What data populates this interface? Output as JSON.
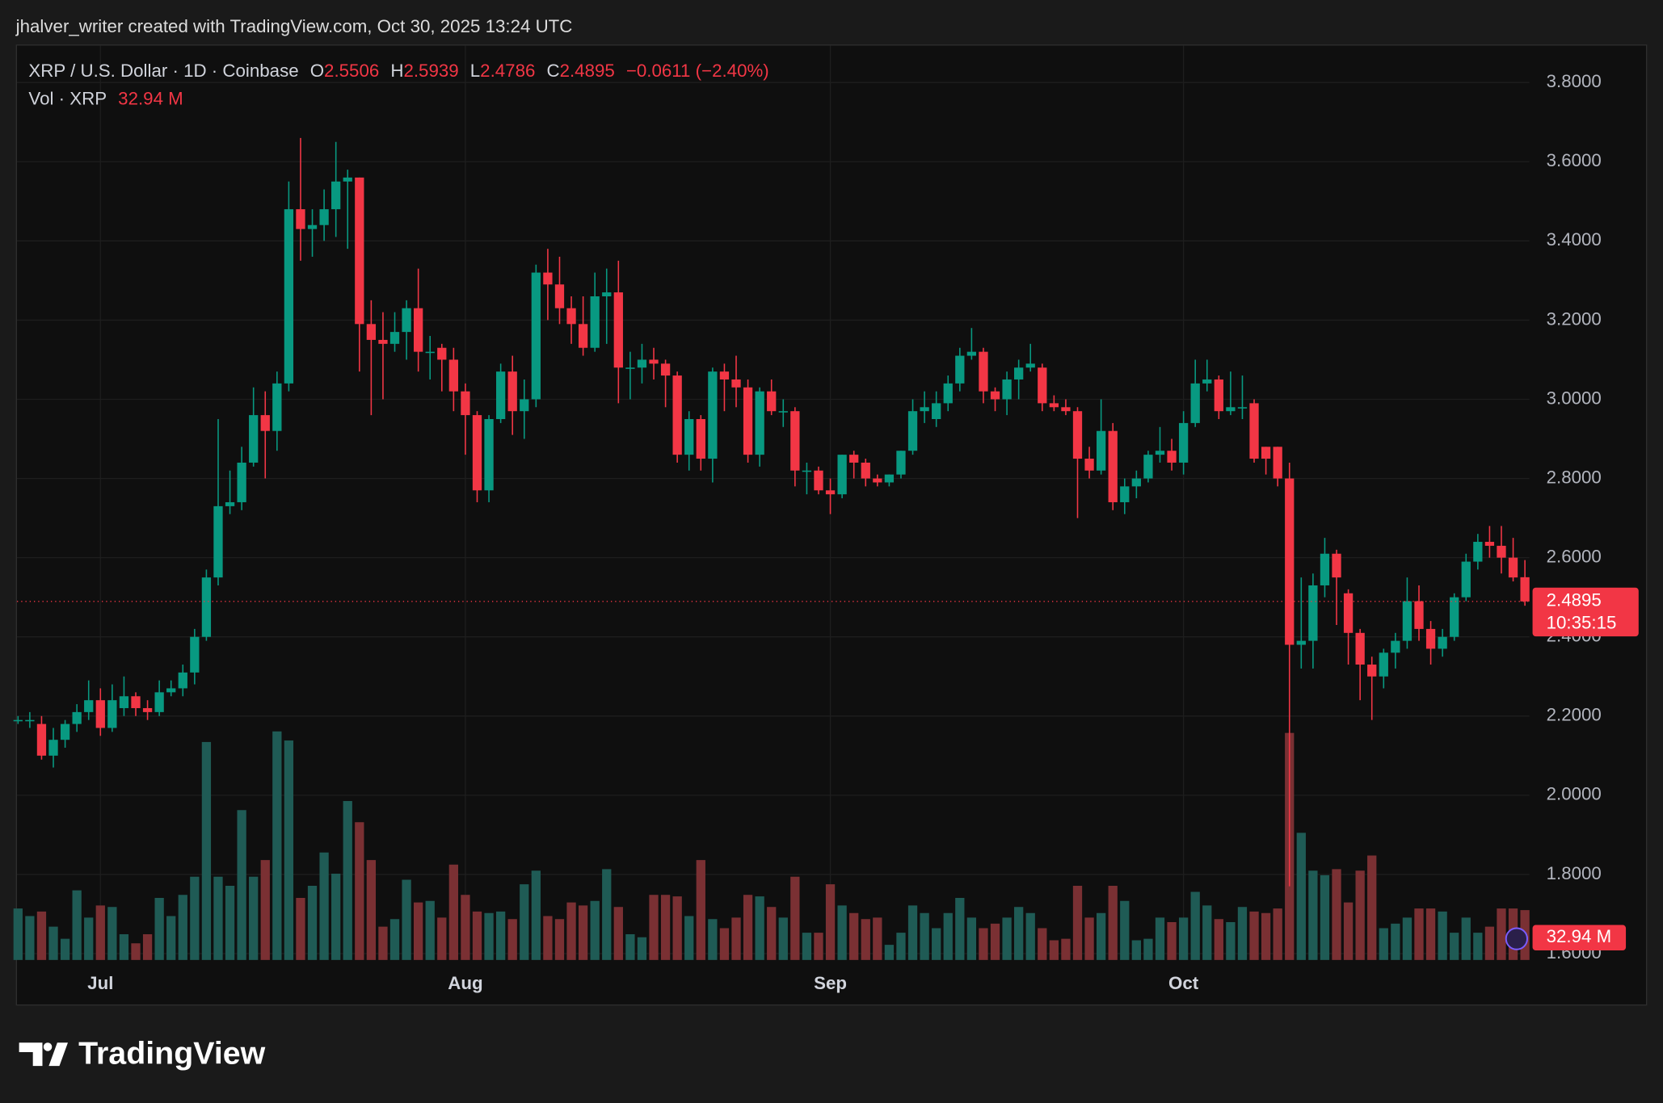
{
  "header": {
    "credit": "jhalver_writer created with TradingView.com, Oct 30, 2025 13:24 UTC",
    "ohlc_letters": [
      "O",
      "H",
      "L",
      "C"
    ],
    "change_label": "−0.0611 (−2.40%)",
    "volume_title": "Vol · XRP",
    "volume_label": "32.94 M",
    "countdown": "10:35:15",
    "logo": "TradingView"
  },
  "chart_data": {
    "type": "candlestick",
    "title": "XRP / U.S. Dollar · 1D · Coinbase",
    "categories": [
      null,
      null,
      null,
      null,
      null,
      null,
      null,
      "Jul",
      null,
      null,
      null,
      null,
      null,
      null,
      null,
      null,
      null,
      null,
      null,
      null,
      null,
      null,
      null,
      null,
      null,
      null,
      null,
      null,
      null,
      null,
      null,
      null,
      null,
      null,
      null,
      null,
      null,
      null,
      "Aug",
      null,
      null,
      null,
      null,
      null,
      null,
      null,
      null,
      null,
      null,
      null,
      null,
      null,
      null,
      null,
      null,
      null,
      null,
      null,
      null,
      null,
      null,
      null,
      null,
      null,
      null,
      null,
      null,
      null,
      null,
      "Sep",
      null,
      null,
      null,
      null,
      null,
      null,
      null,
      null,
      null,
      null,
      null,
      null,
      null,
      null,
      null,
      null,
      null,
      null,
      null,
      null,
      null,
      null,
      null,
      null,
      null,
      null,
      null,
      null,
      null,
      "Oct",
      null,
      null,
      null,
      null,
      null,
      null,
      null,
      null,
      null,
      null,
      null,
      null,
      null,
      null,
      null,
      null,
      null,
      null,
      null,
      null,
      null,
      null,
      null,
      null,
      null,
      null,
      null,
      null,
      null
    ],
    "open": [
      2.19,
      2.19,
      2.18,
      2.1,
      2.14,
      2.18,
      2.21,
      2.24,
      2.17,
      2.22,
      2.25,
      2.22,
      2.21,
      2.26,
      2.27,
      2.31,
      2.4,
      2.55,
      2.73,
      2.74,
      2.84,
      2.96,
      2.92,
      3.04,
      3.48,
      3.43,
      3.44,
      3.48,
      3.55,
      3.56,
      3.19,
      3.15,
      3.14,
      3.17,
      3.23,
      3.12,
      3.13,
      3.1,
      3.02,
      2.96,
      2.77,
      2.95,
      3.07,
      2.97,
      3.0,
      3.32,
      3.29,
      3.23,
      3.19,
      3.13,
      3.26,
      3.27,
      3.08,
      3.08,
      3.1,
      3.09,
      3.06,
      2.86,
      2.95,
      2.85,
      3.07,
      3.05,
      3.03,
      2.86,
      3.02,
      2.97,
      2.97,
      2.82,
      2.82,
      2.77,
      2.76,
      2.86,
      2.84,
      2.8,
      2.79,
      2.81,
      2.87,
      2.97,
      2.95,
      2.99,
      3.04,
      3.11,
      3.12,
      3.02,
      3.0,
      3.05,
      3.08,
      3.08,
      2.99,
      2.98,
      2.97,
      2.85,
      2.82,
      2.92,
      2.74,
      2.78,
      2.8,
      2.86,
      2.87,
      2.84,
      2.94,
      3.04,
      3.05,
      2.97,
      2.98,
      2.99,
      2.88,
      2.88,
      2.8,
      2.38,
      2.39,
      2.53,
      2.61,
      2.51,
      2.41,
      2.33,
      2.3,
      2.36,
      2.39,
      2.49,
      2.42,
      2.37,
      2.4,
      2.5,
      2.59,
      2.64,
      2.63,
      2.6,
      2.5506
    ],
    "high": [
      2.2,
      2.21,
      2.2,
      2.17,
      2.19,
      2.23,
      2.29,
      2.27,
      2.28,
      2.3,
      2.26,
      2.24,
      2.29,
      2.29,
      2.33,
      2.42,
      2.57,
      2.95,
      2.82,
      2.88,
      3.03,
      3.02,
      3.07,
      3.55,
      3.66,
      3.48,
      3.53,
      3.65,
      3.58,
      3.56,
      3.25,
      3.22,
      3.22,
      3.25,
      3.33,
      3.16,
      3.14,
      3.13,
      3.04,
      2.97,
      2.96,
      3.09,
      3.11,
      3.05,
      3.34,
      3.38,
      3.36,
      3.26,
      3.26,
      3.32,
      3.33,
      3.35,
      3.12,
      3.14,
      3.13,
      3.1,
      3.07,
      2.97,
      2.96,
      3.08,
      3.09,
      3.11,
      3.05,
      3.03,
      3.05,
      3.0,
      2.98,
      2.84,
      2.83,
      2.8,
      2.86,
      2.87,
      2.85,
      2.81,
      2.81,
      2.87,
      3.0,
      3.02,
      3.02,
      3.06,
      3.13,
      3.18,
      3.13,
      3.03,
      3.07,
      3.1,
      3.14,
      3.09,
      3.01,
      3.0,
      2.98,
      2.88,
      3.0,
      2.94,
      2.8,
      2.82,
      2.87,
      2.93,
      2.9,
      2.97,
      3.1,
      3.1,
      3.06,
      3.07,
      3.06,
      3.0,
      2.88,
      2.88,
      2.84,
      2.55,
      2.56,
      2.65,
      2.62,
      2.52,
      2.42,
      2.35,
      2.37,
      2.41,
      2.55,
      2.53,
      2.44,
      2.42,
      2.51,
      2.61,
      2.66,
      2.68,
      2.68,
      2.65,
      2.5939
    ],
    "low": [
      2.18,
      2.17,
      2.09,
      2.07,
      2.12,
      2.16,
      2.19,
      2.15,
      2.16,
      2.2,
      2.2,
      2.19,
      2.2,
      2.25,
      2.25,
      2.28,
      2.39,
      2.53,
      2.71,
      2.72,
      2.83,
      2.8,
      2.87,
      3.02,
      3.35,
      3.36,
      3.4,
      3.41,
      3.38,
      3.07,
      2.96,
      3.0,
      3.12,
      3.1,
      3.07,
      3.05,
      3.02,
      2.97,
      2.86,
      2.74,
      2.74,
      2.94,
      2.91,
      2.9,
      2.98,
      3.2,
      3.19,
      3.14,
      3.11,
      3.12,
      3.14,
      2.99,
      3.0,
      3.04,
      3.05,
      2.98,
      2.84,
      2.82,
      2.82,
      2.79,
      2.97,
      2.98,
      2.84,
      2.83,
      2.96,
      2.93,
      2.78,
      2.76,
      2.76,
      2.71,
      2.75,
      2.8,
      2.78,
      2.78,
      2.78,
      2.8,
      2.86,
      2.94,
      2.93,
      2.97,
      3.02,
      3.1,
      2.99,
      2.97,
      2.96,
      3.0,
      3.07,
      2.97,
      2.97,
      2.96,
      2.7,
      2.8,
      2.81,
      2.72,
      2.71,
      2.75,
      2.79,
      2.84,
      2.82,
      2.81,
      2.93,
      3.02,
      2.95,
      2.96,
      2.95,
      2.84,
      2.81,
      2.78,
      1.77,
      2.32,
      2.32,
      2.5,
      2.43,
      2.33,
      2.24,
      2.19,
      2.27,
      2.32,
      2.37,
      2.39,
      2.33,
      2.35,
      2.39,
      2.49,
      2.57,
      2.6,
      2.56,
      2.54,
      2.4786
    ],
    "close": [
      2.19,
      2.19,
      2.1,
      2.14,
      2.18,
      2.21,
      2.24,
      2.17,
      2.24,
      2.25,
      2.22,
      2.21,
      2.26,
      2.27,
      2.31,
      2.4,
      2.55,
      2.73,
      2.74,
      2.84,
      2.96,
      2.92,
      3.04,
      3.48,
      3.43,
      3.44,
      3.48,
      3.55,
      3.56,
      3.19,
      3.15,
      3.14,
      3.17,
      3.23,
      3.12,
      3.12,
      3.1,
      3.02,
      2.96,
      2.77,
      2.95,
      3.07,
      2.97,
      3.0,
      3.32,
      3.29,
      3.23,
      3.19,
      3.13,
      3.26,
      3.27,
      3.08,
      3.08,
      3.1,
      3.09,
      3.06,
      2.86,
      2.95,
      2.85,
      3.07,
      3.05,
      3.03,
      2.86,
      3.02,
      2.97,
      2.97,
      2.82,
      2.82,
      2.77,
      2.76,
      2.86,
      2.84,
      2.8,
      2.79,
      2.81,
      2.87,
      2.97,
      2.98,
      2.99,
      3.04,
      3.11,
      3.12,
      3.02,
      3.0,
      3.05,
      3.08,
      3.09,
      2.99,
      2.98,
      2.97,
      2.85,
      2.82,
      2.92,
      2.74,
      2.78,
      2.8,
      2.86,
      2.87,
      2.84,
      2.94,
      3.04,
      3.05,
      2.97,
      2.98,
      2.98,
      2.85,
      2.85,
      2.8,
      2.38,
      2.39,
      2.53,
      2.61,
      2.55,
      2.41,
      2.33,
      2.3,
      2.36,
      2.39,
      2.49,
      2.42,
      2.37,
      2.4,
      2.5,
      2.59,
      2.64,
      2.63,
      2.6,
      2.55,
      2.4895
    ],
    "volume": [
      34,
      29,
      32,
      22,
      14,
      46,
      28,
      36,
      35,
      17,
      11,
      17,
      41,
      29,
      43,
      55,
      144,
      55,
      49,
      99,
      55,
      66,
      151,
      145,
      41,
      49,
      71,
      57,
      105,
      91,
      66,
      22,
      27,
      53,
      38,
      39,
      28,
      63,
      43,
      32,
      31,
      32,
      27,
      50,
      59,
      29,
      27,
      38,
      36,
      39,
      60,
      35,
      17,
      15,
      43,
      43,
      42,
      29,
      66,
      27,
      21,
      28,
      43,
      42,
      35,
      28,
      55,
      18,
      18,
      50,
      36,
      31,
      27,
      28,
      10,
      18,
      36,
      31,
      21,
      31,
      41,
      28,
      21,
      24,
      28,
      35,
      31,
      21,
      13,
      14,
      49,
      28,
      31,
      49,
      39,
      13,
      14,
      28,
      25,
      28,
      45,
      36,
      27,
      25,
      35,
      32,
      31,
      34,
      150,
      84,
      59,
      56,
      60,
      38,
      59,
      69,
      21,
      24,
      28,
      34,
      34,
      32,
      18,
      28,
      18,
      22,
      34,
      34,
      32.94
    ],
    "ylim": [
      1.584,
      3.896
    ],
    "yticks": [
      {
        "value": 1.6,
        "label": "1.6000"
      },
      {
        "value": 1.8,
        "label": "1.8000"
      },
      {
        "value": 2.0,
        "label": "2.0000"
      },
      {
        "value": 2.2,
        "label": "2.2000"
      },
      {
        "value": 2.4,
        "label": "2.4000"
      },
      {
        "value": 2.6,
        "label": "2.6000"
      },
      {
        "value": 2.8,
        "label": "2.8000"
      },
      {
        "value": 3.0,
        "label": "3.0000"
      },
      {
        "value": 3.2,
        "label": "3.2000"
      },
      {
        "value": 3.4,
        "label": "3.4000"
      },
      {
        "value": 3.6,
        "label": "3.6000"
      },
      {
        "value": 3.8,
        "label": "3.8000"
      }
    ],
    "volume_lim": [
      0,
      210
    ],
    "grid": true,
    "up_color": "#089981",
    "down_color": "#f23645",
    "volume_up_color": "#1f5b55",
    "volume_down_color": "#7a3033"
  }
}
